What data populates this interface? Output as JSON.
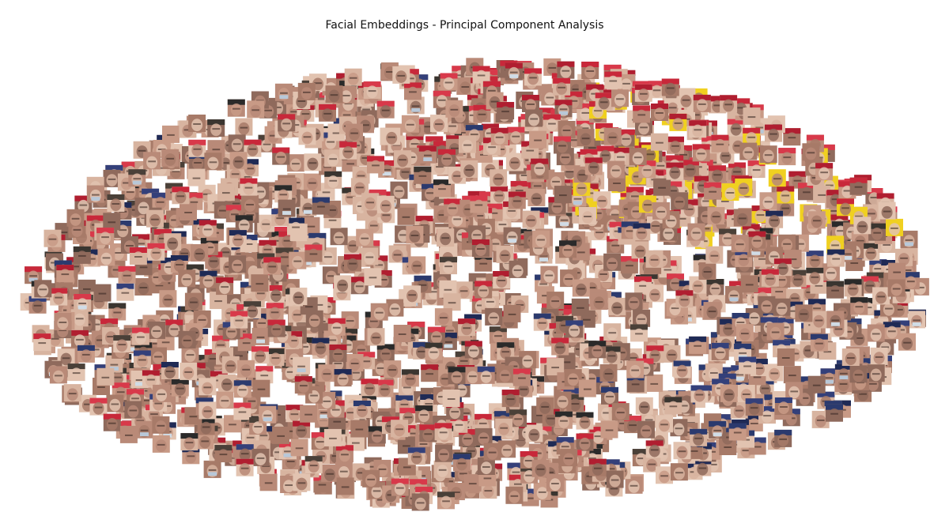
{
  "chart_data": {
    "type": "scatter",
    "title": "Facial Embeddings - Principal Component Analysis",
    "xlabel": "",
    "ylabel": "",
    "axes_visible": false,
    "grid": false,
    "legend": "none",
    "marker": "face-thumbnail",
    "point_count_estimate": 2000,
    "cloud": {
      "description_axis_units": "principal components (unlabeled)",
      "center": [
        0.0,
        0.0
      ],
      "x_extent": [
        -1.0,
        1.0
      ],
      "y_extent": [
        -1.0,
        1.0
      ]
    },
    "marker_palette": {
      "skin": [
        "#c89a86",
        "#b98a78",
        "#d8b4a0",
        "#a77a68",
        "#e2c3b0",
        "#8f6a5c"
      ],
      "red_cap": [
        "#c8283a",
        "#b01e30",
        "#d8394a"
      ],
      "navy_cap": [
        "#1f2a55",
        "#2b3a6e",
        "#34407a"
      ],
      "dark": [
        "#2a2a2a",
        "#3a3530",
        "#4a4038"
      ],
      "yellow": [
        "#f0d020"
      ],
      "mask": [
        "#b8c8d8",
        "#d0dce6"
      ]
    }
  }
}
